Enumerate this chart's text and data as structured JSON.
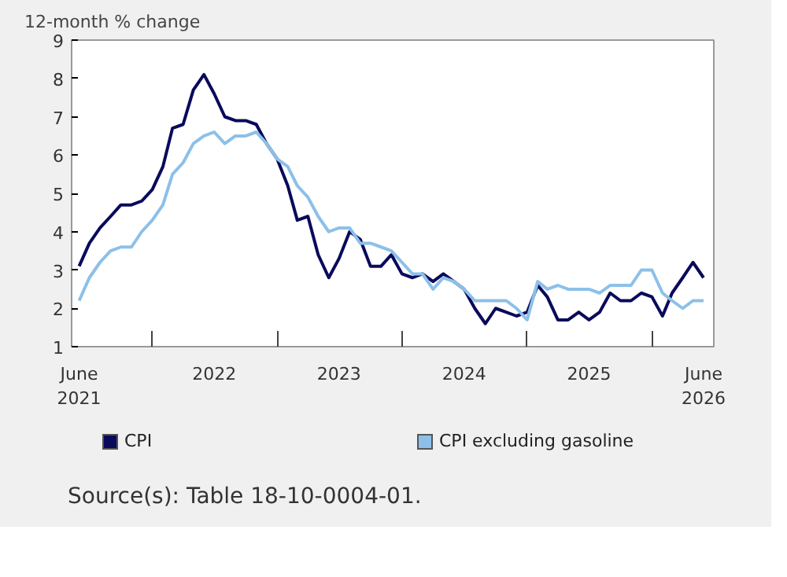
{
  "chart_data": {
    "type": "line",
    "ylabel": "12-month % change",
    "x": [
      "2021-06",
      "2021-07",
      "2021-08",
      "2021-09",
      "2021-10",
      "2021-11",
      "2021-12",
      "2022-01",
      "2022-02",
      "2022-03",
      "2022-04",
      "2022-05",
      "2022-06",
      "2022-07",
      "2022-08",
      "2022-09",
      "2022-10",
      "2022-11",
      "2022-12",
      "2023-01",
      "2023-02",
      "2023-03",
      "2023-04",
      "2023-05",
      "2023-06",
      "2023-07",
      "2023-08",
      "2023-09",
      "2023-10",
      "2023-11",
      "2023-12",
      "2024-01",
      "2024-02",
      "2024-03",
      "2024-04",
      "2024-05",
      "2024-06",
      "2024-07",
      "2024-08",
      "2024-09",
      "2024-10",
      "2024-11",
      "2024-12",
      "2025-01",
      "2025-02",
      "2025-03",
      "2025-04",
      "2025-05",
      "2025-06",
      "2025-07",
      "2025-08",
      "2025-09",
      "2025-10",
      "2025-11",
      "2025-12",
      "2026-01",
      "2026-02",
      "2026-03",
      "2026-04",
      "2026-05",
      "2026-06"
    ],
    "series": [
      {
        "name": "CPI",
        "color": "#0a0a5c",
        "values": [
          3.1,
          3.7,
          4.1,
          4.4,
          4.7,
          4.7,
          4.8,
          5.1,
          5.7,
          6.7,
          6.8,
          7.7,
          8.1,
          7.6,
          7.0,
          6.9,
          6.9,
          6.8,
          6.3,
          5.9,
          5.2,
          4.3,
          4.4,
          3.4,
          2.8,
          3.3,
          4.0,
          3.8,
          3.1,
          3.1,
          3.4,
          2.9,
          2.8,
          2.9,
          2.7,
          2.9,
          2.7,
          2.5,
          2.0,
          1.6,
          2.0,
          1.9,
          1.8,
          1.9,
          2.6,
          2.3,
          1.7,
          1.7,
          1.9,
          1.7,
          1.9,
          2.4,
          2.2,
          2.2,
          2.4,
          2.3,
          1.8,
          2.4,
          2.8,
          3.2,
          2.8
        ]
      },
      {
        "name": "CPI excluding gasoline",
        "color": "#8cc0e8",
        "values": [
          2.2,
          2.8,
          3.2,
          3.5,
          3.6,
          3.6,
          4.0,
          4.3,
          4.7,
          5.5,
          5.8,
          6.3,
          6.5,
          6.6,
          6.3,
          6.5,
          6.5,
          6.6,
          6.3,
          5.9,
          5.7,
          5.2,
          4.9,
          4.4,
          4.0,
          4.1,
          4.1,
          3.7,
          3.7,
          3.6,
          3.5,
          3.2,
          2.9,
          2.9,
          2.5,
          2.8,
          2.7,
          2.5,
          2.2,
          2.2,
          2.2,
          2.2,
          2.0,
          1.7,
          2.7,
          2.5,
          2.6,
          2.5,
          2.5,
          2.5,
          2.4,
          2.6,
          2.6,
          2.6,
          3.0,
          3.0,
          2.4,
          2.2,
          2.0,
          2.2,
          2.2
        ]
      }
    ],
    "xlim": [
      "2021-05-10",
      "2026-07-01"
    ],
    "xticks": [
      {
        "value": "2021-06",
        "label": "June\n2021"
      },
      {
        "value": "2022-01",
        "label": null
      },
      {
        "value": "2022-07",
        "label": "2022"
      },
      {
        "value": "2023-01",
        "label": null
      },
      {
        "value": "2023-07",
        "label": "2023"
      },
      {
        "value": "2024-01",
        "label": null
      },
      {
        "value": "2024-07",
        "label": "2024"
      },
      {
        "value": "2025-01",
        "label": null
      },
      {
        "value": "2025-07",
        "label": "2025"
      },
      {
        "value": "2026-01",
        "label": null
      },
      {
        "value": "2026-06",
        "label": "June\n2026"
      }
    ],
    "ylim": [
      1,
      9
    ],
    "yticks": [
      1,
      2,
      3,
      4,
      5,
      6,
      7,
      8,
      9
    ],
    "grid": false,
    "legend": "bottom",
    "line_style": "solid",
    "marker": "none",
    "annotations": [
      "Source(s):  Table 18-10-0004-01."
    ]
  }
}
